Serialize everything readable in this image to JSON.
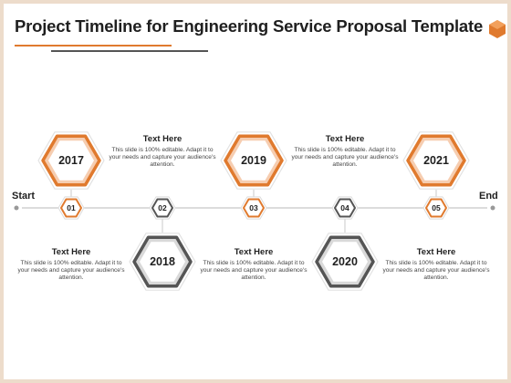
{
  "title": "Project Timeline for Engineering Service Proposal Template",
  "timeline": {
    "start_label": "Start",
    "end_label": "End",
    "steps": [
      {
        "number": "01",
        "year": "2017",
        "heading": "Text Here",
        "body": "This slide is 100% editable. Adapt it to your needs and capture your audience's attention."
      },
      {
        "number": "02",
        "year": "2018",
        "heading": "Text Here",
        "body": "This slide is 100% editable. Adapt it to your needs and capture your audience's attention."
      },
      {
        "number": "03",
        "year": "2019",
        "heading": "Text Here",
        "body": "This slide is 100% editable. Adapt it to your needs and capture your audience's attention."
      },
      {
        "number": "04",
        "year": "2020",
        "heading": "Text Here",
        "body": "This slide is 100% editable. Adapt it to your needs and capture your audience's attention."
      },
      {
        "number": "05",
        "year": "2021",
        "heading": "Text Here",
        "body": "This slide is 100% editable. Adapt it to your needs and capture your audience's attention."
      }
    ]
  },
  "colors": {
    "orange": "#e07a2e",
    "orange_fill": "#f6cdb0",
    "gray": "#555555",
    "gray_fill": "#d9d9d9",
    "frame": "#eddccb"
  }
}
